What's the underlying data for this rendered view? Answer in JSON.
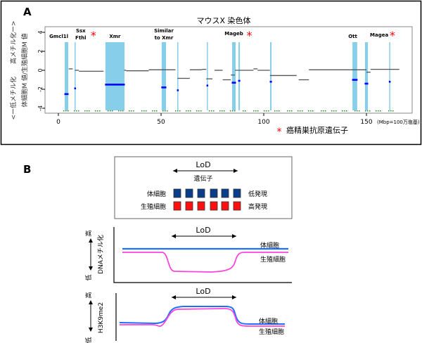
{
  "panel_a_label": "A",
  "panel_b_label": "B",
  "chart_data": {
    "type": "scatter",
    "title": "マウスX 染色体",
    "ylabel_top": "<ー低メチル化　　高メチル化ー>",
    "ylabel": "体細胞M 値/生殖細胞M 値",
    "xunit": "(Mbp=100万塩基)",
    "xticks": [
      0,
      50,
      100,
      150
    ],
    "yticks": [
      4,
      2,
      0,
      -2,
      -4
    ],
    "xlim": [
      -8,
      170
    ],
    "ylim": [
      -4.3,
      4.6
    ],
    "legend": "癌精巣抗原遺伝子",
    "legend_marker": "*",
    "colors": {
      "band": "#87ceeb",
      "marker": "#0000ff",
      "line": "#555555",
      "star": "#ff0000",
      "probe": "#228b22"
    },
    "regions": [
      {
        "label": "Gmcl1l",
        "start": 3.1,
        "end": 4.8,
        "value": -2.5,
        "ct": false
      },
      {
        "label": "Ssx Fthl",
        "start": 7.9,
        "end": 8.3,
        "value": -1.9,
        "ct": true
      },
      {
        "label": "Xmr",
        "start": 22.9,
        "end": 32.2,
        "value": -1.5,
        "ct": false
      },
      {
        "label": "Similar to Xmr",
        "start": 50.3,
        "end": 52.4,
        "value": -1.8,
        "ct": false
      },
      {
        "label": "",
        "start": 57.9,
        "end": 58.3,
        "value": -2.1,
        "ct": false
      },
      {
        "label": "",
        "start": 72.3,
        "end": 72.6,
        "value": -1.6,
        "ct": false
      },
      {
        "label": "Mageb",
        "start": 84.6,
        "end": 86.3,
        "value": -1.3,
        "ct": true
      },
      {
        "label": "",
        "start": 87.7,
        "end": 88.4,
        "value": -1.1,
        "ct": false
      },
      {
        "label": "",
        "start": 103.1,
        "end": 103.8,
        "value": -1.2,
        "ct": false
      },
      {
        "label": "Ott",
        "start": 143.2,
        "end": 145.5,
        "value": -1.0,
        "ct": false
      },
      {
        "label": "Magea",
        "start": 149.3,
        "end": 150.7,
        "value": -1.4,
        "ct": true
      },
      {
        "label": "",
        "start": 161.1,
        "end": 161.5,
        "value": -1.2,
        "ct": false
      }
    ],
    "segments": [
      [
        5,
        7,
        0.15
      ],
      [
        8,
        10,
        0.0
      ],
      [
        10,
        22,
        -0.1
      ],
      [
        32,
        33,
        0.0
      ],
      [
        33,
        44,
        -0.05
      ],
      [
        44,
        57,
        0.05
      ],
      [
        58,
        61,
        -0.85
      ],
      [
        61,
        64,
        -0.85
      ],
      [
        64,
        70,
        0.05
      ],
      [
        70,
        72,
        0.1
      ],
      [
        72,
        75,
        -0.9
      ],
      [
        76,
        80,
        0.0
      ],
      [
        80,
        84,
        -1.0
      ],
      [
        84,
        86,
        -0.5
      ],
      [
        86,
        95,
        0.0
      ],
      [
        95,
        97,
        0.15
      ],
      [
        97,
        103,
        0.0
      ],
      [
        103,
        116,
        -0.55
      ],
      [
        117,
        122,
        -1.0
      ],
      [
        122,
        142,
        0.05
      ],
      [
        142,
        150,
        0.05
      ],
      [
        150,
        152,
        -0.2
      ],
      [
        152,
        162,
        0.1
      ],
      [
        162,
        166,
        0.1
      ]
    ]
  },
  "panel_b": {
    "schematic": {
      "lod": "LoD",
      "gene": "遺伝子",
      "somatic": "体細胞",
      "germ": "生殖細胞",
      "low_expr": "低発現",
      "high_expr": "高発現",
      "gene_count": 6,
      "colors": {
        "somatic": "#0a3d8a",
        "germ": "#ff1010"
      }
    },
    "methylation": {
      "lod": "LoD",
      "ylabel": "DNAメチル化",
      "high": "高",
      "low": "低",
      "somatic": "体細胞",
      "germ": "生殖細胞"
    },
    "h3k9": {
      "lod": "LoD",
      "ylabel": "H3K9me2",
      "high": "高",
      "low": "低",
      "somatic": "体細胞",
      "germ": "生殖細胞"
    },
    "colors": {
      "somatic_line": "#1e6fff",
      "germ_line": "#ff44dd"
    }
  }
}
